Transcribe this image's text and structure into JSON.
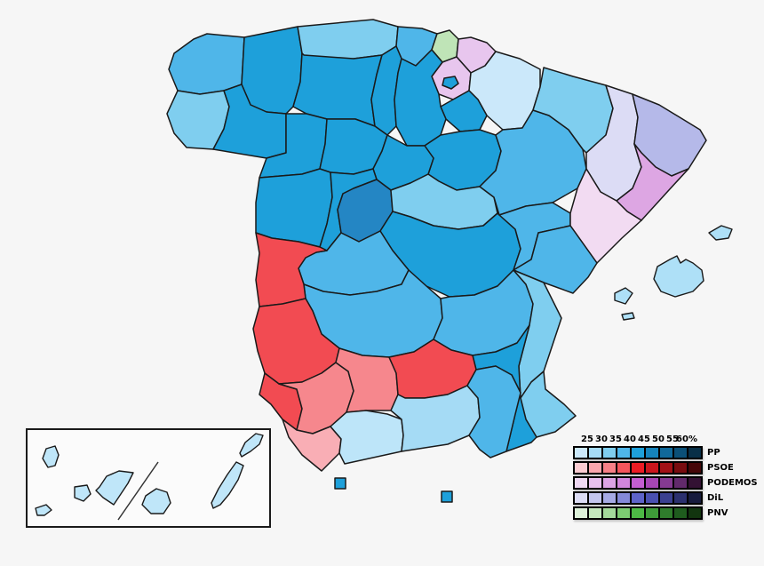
{
  "canvas": {
    "background": "#f6f6f6",
    "border_color": "#1a1a1a",
    "sea_color": "#f6f6f6",
    "inset_fill": "#fbfbfb"
  },
  "legend": {
    "scale_labels": [
      "25",
      "30",
      "35",
      "40",
      "45",
      "50",
      "55",
      "60%"
    ],
    "parties": [
      {
        "name": "PP",
        "colors": [
          "#cbe8fa",
          "#a5dbf5",
          "#7fceef",
          "#4fb6e9",
          "#1ea0da",
          "#1583bb",
          "#10699a",
          "#0b5078",
          "#082f47"
        ]
      },
      {
        "name": "PSOE",
        "colors": [
          "#fbccd2",
          "#f9a6ad",
          "#f68087",
          "#f4555c",
          "#ec1c24",
          "#ca161d",
          "#a21116",
          "#780c0f",
          "#450608"
        ]
      },
      {
        "name": "PODEMOS",
        "colors": [
          "#efd8f3",
          "#e7c0ee",
          "#dda4e6",
          "#d286dd",
          "#c45ed0",
          "#a646b4",
          "#853a92",
          "#622a6c",
          "#331133"
        ]
      },
      {
        "name": "DiL",
        "colors": [
          "#dcdcf5",
          "#c3c5ee",
          "#a6aae4",
          "#8489d8",
          "#5d63c8",
          "#4950b0",
          "#3a4090",
          "#2b306e",
          "#171b3d"
        ]
      },
      {
        "name": "PNV",
        "colors": [
          "#def2da",
          "#c4e8be",
          "#a4da9b",
          "#7ccb72",
          "#4db945",
          "#3e9c39",
          "#2f7c2c",
          "#1f5c1e",
          "#12350f"
        ]
      }
    ]
  },
  "map": {
    "provinces": {
      "a_coruna": {
        "name": "A Coruña",
        "party": "PP",
        "range": "35–40",
        "color": "#4fb6e9"
      },
      "lugo": {
        "name": "Lugo",
        "party": "PP",
        "range": "40–45",
        "color": "#1ea0da"
      },
      "pontevedra": {
        "name": "Pontevedra",
        "party": "PP",
        "range": "30–35",
        "color": "#7fceef"
      },
      "ourense": {
        "name": "Ourense",
        "party": "PP",
        "range": "40–45",
        "color": "#1ea0da"
      },
      "asturias": {
        "name": "Asturias",
        "party": "PP",
        "range": "30–35",
        "color": "#7fceef"
      },
      "cantabria": {
        "name": "Cantabria",
        "party": "PP",
        "range": "35–40",
        "color": "#4fb6e9"
      },
      "bizkaia": {
        "name": "Vizcaya",
        "party": "PNV",
        "range": "25–30",
        "color": "#bfe4b7"
      },
      "gipuzkoa": {
        "name": "Guipúzcoa",
        "party": "PODEMOS",
        "range": "25–30",
        "color": "#e8c6ee"
      },
      "alava": {
        "name": "Álava",
        "party": "PODEMOS",
        "range": "25–30",
        "color": "#e8c6ee"
      },
      "trevino": {
        "name": "Treviño (Burgos)",
        "party": "PP",
        "range": "40–45",
        "color": "#1ea0da"
      },
      "navarra": {
        "name": "Navarra",
        "party": "PP",
        "range": "<25",
        "color": "#cbe8fa"
      },
      "la_rioja": {
        "name": "La Rioja",
        "party": "PP",
        "range": "40–45",
        "color": "#1ea0da"
      },
      "burgos": {
        "name": "Burgos",
        "party": "PP",
        "range": "40–45",
        "color": "#1ea0da"
      },
      "palencia": {
        "name": "Palencia",
        "party": "PP",
        "range": "40–45",
        "color": "#1ea0da"
      },
      "leon": {
        "name": "León",
        "party": "PP",
        "range": "40–45",
        "color": "#1ea0da"
      },
      "zamora": {
        "name": "Zamora",
        "party": "PP",
        "range": "40–45",
        "color": "#1ea0da"
      },
      "valladolid": {
        "name": "Valladolid",
        "party": "PP",
        "range": "40–45",
        "color": "#1ea0da"
      },
      "salamanca": {
        "name": "Salamanca",
        "party": "PP",
        "range": "40–45",
        "color": "#1ea0da"
      },
      "segovia": {
        "name": "Segovia",
        "party": "PP",
        "range": "40–45",
        "color": "#1ea0da"
      },
      "soria": {
        "name": "Soria",
        "party": "PP",
        "range": "40–45",
        "color": "#1ea0da"
      },
      "avila": {
        "name": "Ávila",
        "party": "PP",
        "range": "40–45",
        "color": "#1ea0da"
      },
      "madrid": {
        "name": "Madrid",
        "party": "PP",
        "range": "45–50",
        "color": "#2486c4"
      },
      "guadalajara": {
        "name": "Guadalajara",
        "party": "PP",
        "range": "30–35",
        "color": "#7fceef"
      },
      "cuenca": {
        "name": "Cuenca",
        "party": "PP",
        "range": "40–45",
        "color": "#1ea0da"
      },
      "toledo": {
        "name": "Toledo",
        "party": "PP",
        "range": "35–40",
        "color": "#4fb6e9"
      },
      "ciudad_real": {
        "name": "Ciudad Real",
        "party": "PP",
        "range": "35–40",
        "color": "#4fb6e9"
      },
      "albacete": {
        "name": "Albacete",
        "party": "PP",
        "range": "35–40",
        "color": "#4fb6e9"
      },
      "huesca": {
        "name": "Huesca",
        "party": "PP",
        "range": "30–35",
        "color": "#7fceef"
      },
      "zaragoza": {
        "name": "Zaragoza",
        "party": "PP",
        "range": "35–40",
        "color": "#4fb6e9"
      },
      "teruel": {
        "name": "Teruel",
        "party": "PP",
        "range": "35–40",
        "color": "#4fb6e9"
      },
      "lleida": {
        "name": "Lleida",
        "party": "DiL",
        "range": "<25",
        "color": "#dcdcf5"
      },
      "girona": {
        "name": "Girona",
        "party": "DiL",
        "range": "30–35",
        "color": "#b5b9e9"
      },
      "barcelona": {
        "name": "Barcelona",
        "party": "PODEMOS",
        "range": "30–35",
        "color": "#dda6e3"
      },
      "tarragona": {
        "name": "Tarragona",
        "party": "PODEMOS",
        "range": "<25",
        "color": "#f2dbf2"
      },
      "castellon": {
        "name": "Castellón",
        "party": "PP",
        "range": "35–40",
        "color": "#4fb6e9"
      },
      "valencia": {
        "name": "Valencia",
        "party": "PP",
        "range": "30–35",
        "color": "#7fceef"
      },
      "alicante": {
        "name": "Alicante",
        "party": "PP",
        "range": "30–35",
        "color": "#7fceef"
      },
      "murcia": {
        "name": "Murcia",
        "party": "PP",
        "range": "40–45",
        "color": "#1ea0da"
      },
      "almeria": {
        "name": "Almería",
        "party": "PP",
        "range": "35–40",
        "color": "#4fb6e9"
      },
      "granada": {
        "name": "Granada",
        "party": "PP",
        "range": "25–30",
        "color": "#a5dbf5"
      },
      "malaga": {
        "name": "Málaga",
        "party": "PP",
        "range": "<25",
        "color": "#bde5f9"
      },
      "jaen": {
        "name": "Jaén",
        "party": "PSOE",
        "range": "35–40",
        "color": "#f24b52"
      },
      "cordoba": {
        "name": "Córdoba",
        "party": "PSOE",
        "range": "30–35",
        "color": "#f6878d"
      },
      "sevilla": {
        "name": "Sevilla",
        "party": "PSOE",
        "range": "30–35",
        "color": "#f6878d"
      },
      "cadiz": {
        "name": "Cádiz",
        "party": "PSOE",
        "range": "25–30",
        "color": "#f9aeb5"
      },
      "huelva": {
        "name": "Huelva",
        "party": "PSOE",
        "range": "35–40",
        "color": "#f24b52"
      },
      "badajoz": {
        "name": "Badajoz",
        "party": "PSOE",
        "range": "35–40",
        "color": "#f24b52"
      },
      "caceres": {
        "name": "Cáceres",
        "party": "PSOE",
        "range": "35–40",
        "color": "#f24b52"
      },
      "baleares": {
        "name": "Illes Balears",
        "party": "PP",
        "range": "25–30",
        "color": "#aee0f7"
      },
      "canarias": {
        "name": "Canarias",
        "party": "PP",
        "range": "25–30",
        "color": "#bfe6f9"
      },
      "ceuta": {
        "name": "Ceuta",
        "party": "PP",
        "range": "40–45",
        "color": "#1ea0da"
      },
      "melilla": {
        "name": "Melilla",
        "party": "PP",
        "range": "40–45",
        "color": "#1ea0da"
      }
    }
  }
}
